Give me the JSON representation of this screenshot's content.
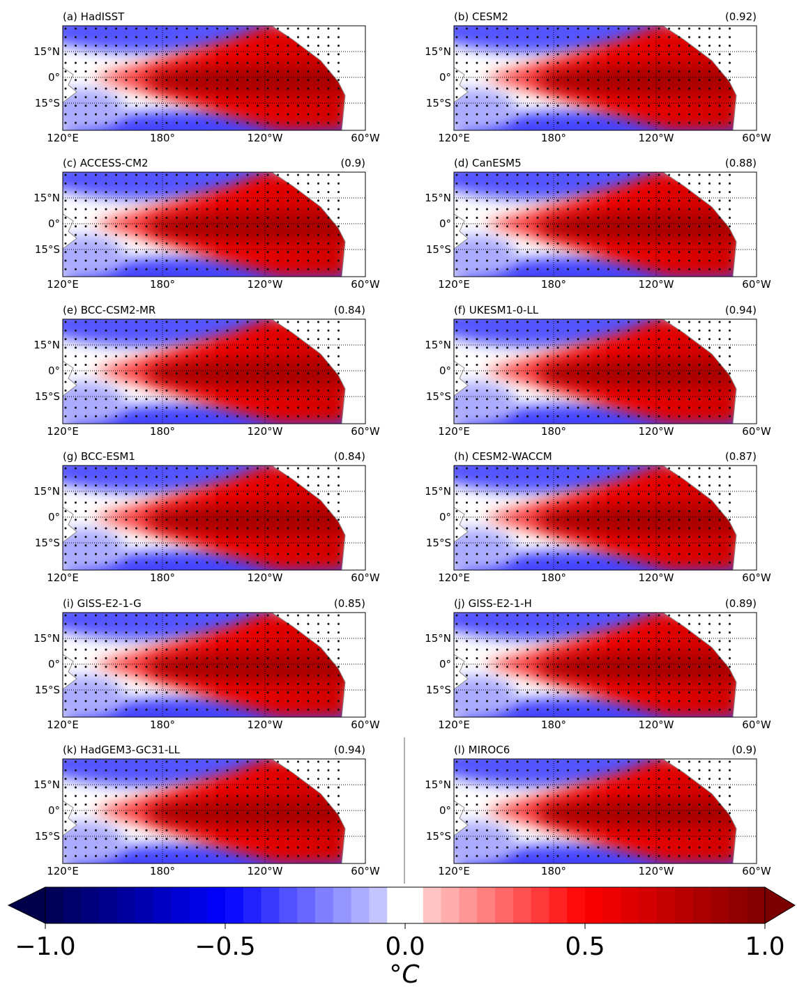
{
  "panels": [
    {
      "title": "(a) HadISST"
    },
    {
      "title": "(b) CESM2",
      "score": "(0.92)"
    },
    {
      "title": "(c) ACCESS-CM2",
      "score": "(0.9)"
    },
    {
      "title": "(d) CanESM5",
      "score": "(0.88)"
    },
    {
      "title": "(e) BCC-CSM2-MR",
      "score": "(0.84)"
    },
    {
      "title": "(f) UKESM1-0-LL",
      "score": "(0.94)"
    },
    {
      "title": "(g) BCC-ESM1",
      "score": "(0.84)"
    },
    {
      "title": "(h) CESM2-WACCM",
      "score": "(0.87)"
    },
    {
      "title": "(i) GISS-E2-1-G",
      "score": "(0.85)"
    },
    {
      "title": "(j) GISS-E2-1-H",
      "score": "(0.89)"
    },
    {
      "title": "(k) HadGEM3-GC31-LL",
      "score": "(0.94)"
    },
    {
      "title": "(l) MIROC6",
      "score": "(0.9)"
    }
  ],
  "lon_ticks": [
    "120°E",
    "180°",
    "120°W",
    "60°W"
  ],
  "lat_ticks": [
    "15°N",
    "0°",
    "15°S"
  ],
  "colorbar": {
    "lim": [
      -1,
      1
    ],
    "ticks": [
      {
        "value": -1,
        "label": "−1.0"
      },
      {
        "value": -0.5,
        "label": "−0.5"
      },
      {
        "value": 0,
        "label": "0.0"
      },
      0.5,
      {
        "value": 1,
        "label": "1.0"
      }
    ],
    "label": "°C"
  }
}
